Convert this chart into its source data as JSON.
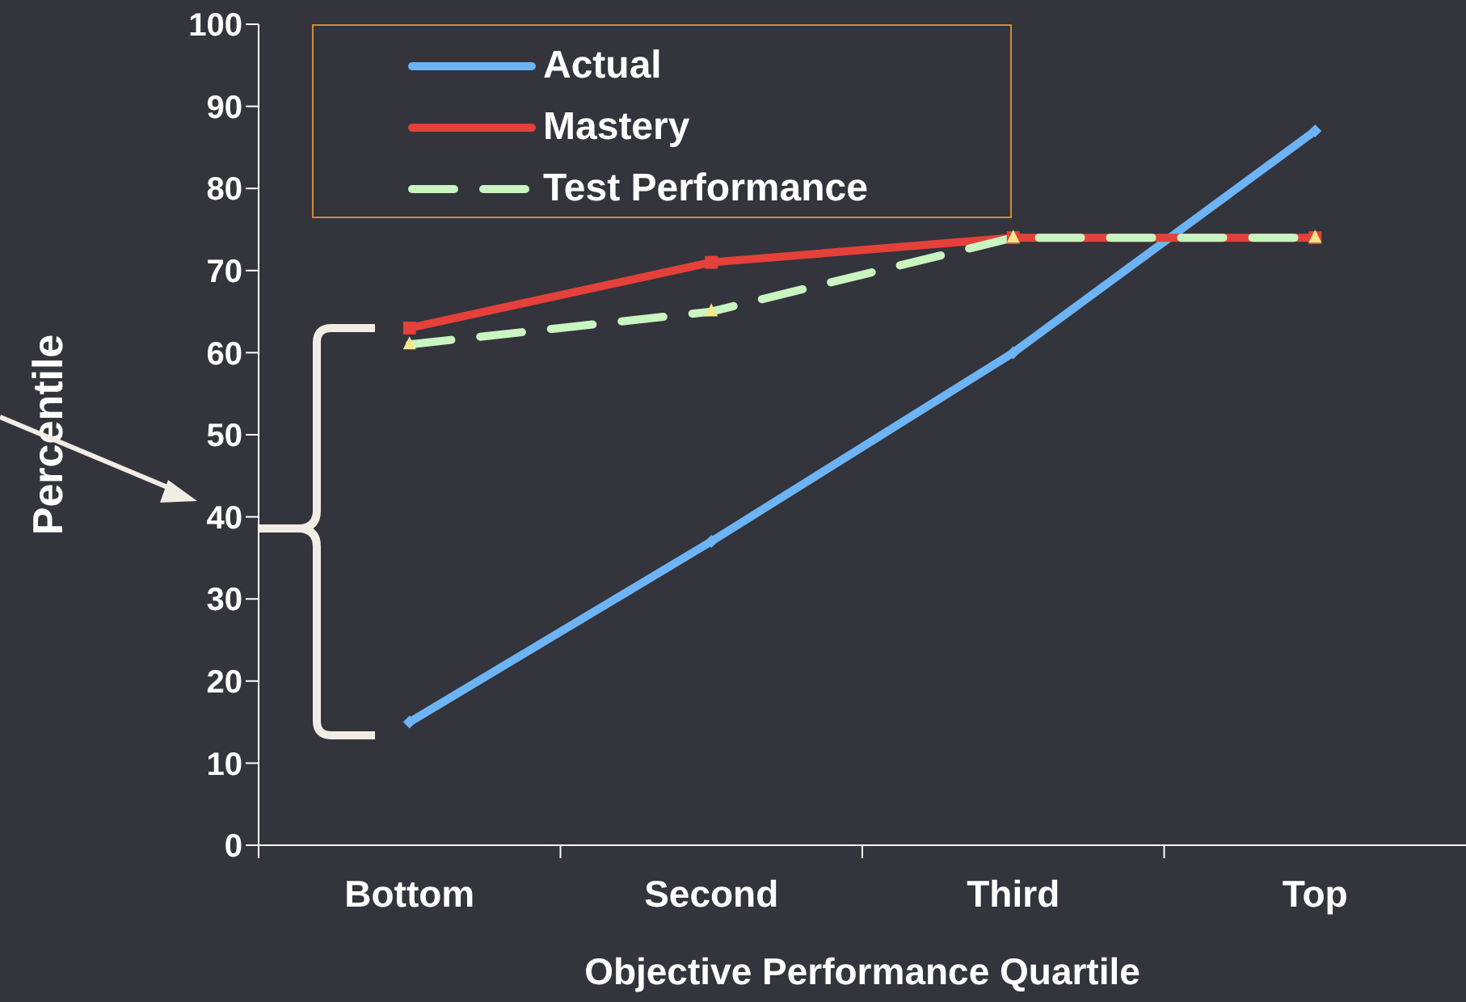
{
  "chart_data": {
    "type": "line",
    "xlabel": "Objective Performance Quartile",
    "ylabel": "Percentile",
    "categories": [
      "Bottom",
      "Second",
      "Third",
      "Top"
    ],
    "series": [
      {
        "name": "Actual",
        "color": "#6cb4f5",
        "values": [
          15,
          37,
          60,
          87
        ],
        "marker": "diamond",
        "line_style": "solid"
      },
      {
        "name": "Mastery",
        "color": "#e5403a",
        "values": [
          63,
          71,
          74,
          74
        ],
        "marker": "square",
        "line_style": "solid"
      },
      {
        "name": "Test Performance",
        "color": "#c8f5c0",
        "values": [
          61,
          65,
          74,
          74
        ],
        "marker": "triangle",
        "line_style": "dashed"
      }
    ],
    "ylim": [
      0,
      100
    ],
    "yticks": [
      0,
      10,
      20,
      30,
      40,
      50,
      60,
      70,
      80,
      90,
      100
    ],
    "grid": false,
    "legend": "top left"
  }
}
